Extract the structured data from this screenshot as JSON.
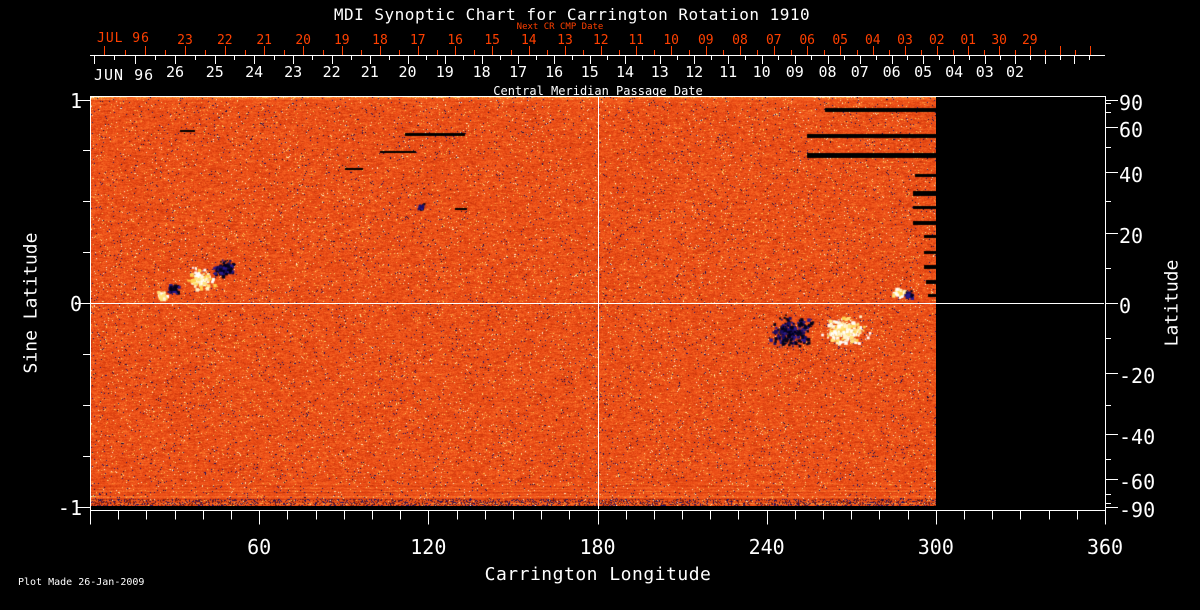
{
  "title": "MDI Synoptic Chart for Carrington Rotation 1910",
  "colors": {
    "background": "#000000",
    "foreground": "#ffffff",
    "next_cr_accent": "#ff4000",
    "image_base_orange": "#ec4d16"
  },
  "top_axes": {
    "next_cr_label": "Next CR CMP Date",
    "cmp_axis_title": "Central Meridian Passage Date",
    "next_cr_row": {
      "month_label": "JUL 96",
      "days": [
        "23",
        "22",
        "21",
        "20",
        "19",
        "18",
        "17",
        "16",
        "15",
        "14",
        "13",
        "12",
        "11",
        "10",
        "09",
        "08",
        "07",
        "06",
        "05",
        "04",
        "03",
        "02",
        "01",
        "30",
        "29"
      ]
    },
    "cmp_row": {
      "month_label": "JUN 96",
      "days": [
        "26",
        "25",
        "24",
        "23",
        "22",
        "21",
        "20",
        "19",
        "18",
        "17",
        "16",
        "15",
        "14",
        "13",
        "12",
        "11",
        "10",
        "09",
        "08",
        "07",
        "06",
        "05",
        "04",
        "03",
        "02"
      ]
    }
  },
  "footer": {
    "plot_made": "Plot Made 26-Jan-2009"
  },
  "chart_data": {
    "type": "heatmap",
    "title": "MDI Synoptic Chart for Carrington Rotation 1910",
    "xlabel": "Carrington Longitude",
    "ylabel_left": "Sine Latitude",
    "ylabel_right": "Latitude",
    "xlim": [
      0,
      360
    ],
    "x_major_tick_step": 60,
    "x_minor_tick_step": 10,
    "x_tick_labels": [
      "60",
      "120",
      "180",
      "240",
      "300",
      "360"
    ],
    "sine_latitude_lim": [
      -1,
      1
    ],
    "sine_latitude_tick_labels": [
      "1",
      "0",
      "-1"
    ],
    "sine_latitude_minor_step": 0.25,
    "latitude_tick_labels": [
      "90",
      "60",
      "40",
      "20",
      "0",
      "-20",
      "-40",
      "-60",
      "-90"
    ],
    "latitude_minor_step_deg": 10,
    "grid": {
      "meridian_longitude": 180,
      "equator_sine_latitude": 0
    },
    "data_coverage": {
      "longitude_range": [
        0,
        300
      ],
      "no_data_fill": "black"
    },
    "colormap": "red-orange magnetogram noise with dark-blue negative and white/yellow positive flux",
    "features": {
      "active_regions": [
        {
          "approx_longitude": 45,
          "approx_sine_latitude": 0.15,
          "description": "bipolar active region: white flux patch beside dark patch"
        },
        {
          "approx_longitude": 255,
          "approx_sine_latitude": -0.13,
          "description": "large bipolar active region: dark cluster west of bright white cluster"
        },
        {
          "approx_longitude": 288,
          "approx_sine_latitude": 0.04,
          "description": "small white/dark pair near equator"
        }
      ],
      "data_gaps": "black horizontal streaks in north-east corner of map (near longitude 260-300, high latitude)",
      "edge_banding": "horizontal striping artifacts along top and bottom map edges"
    }
  }
}
